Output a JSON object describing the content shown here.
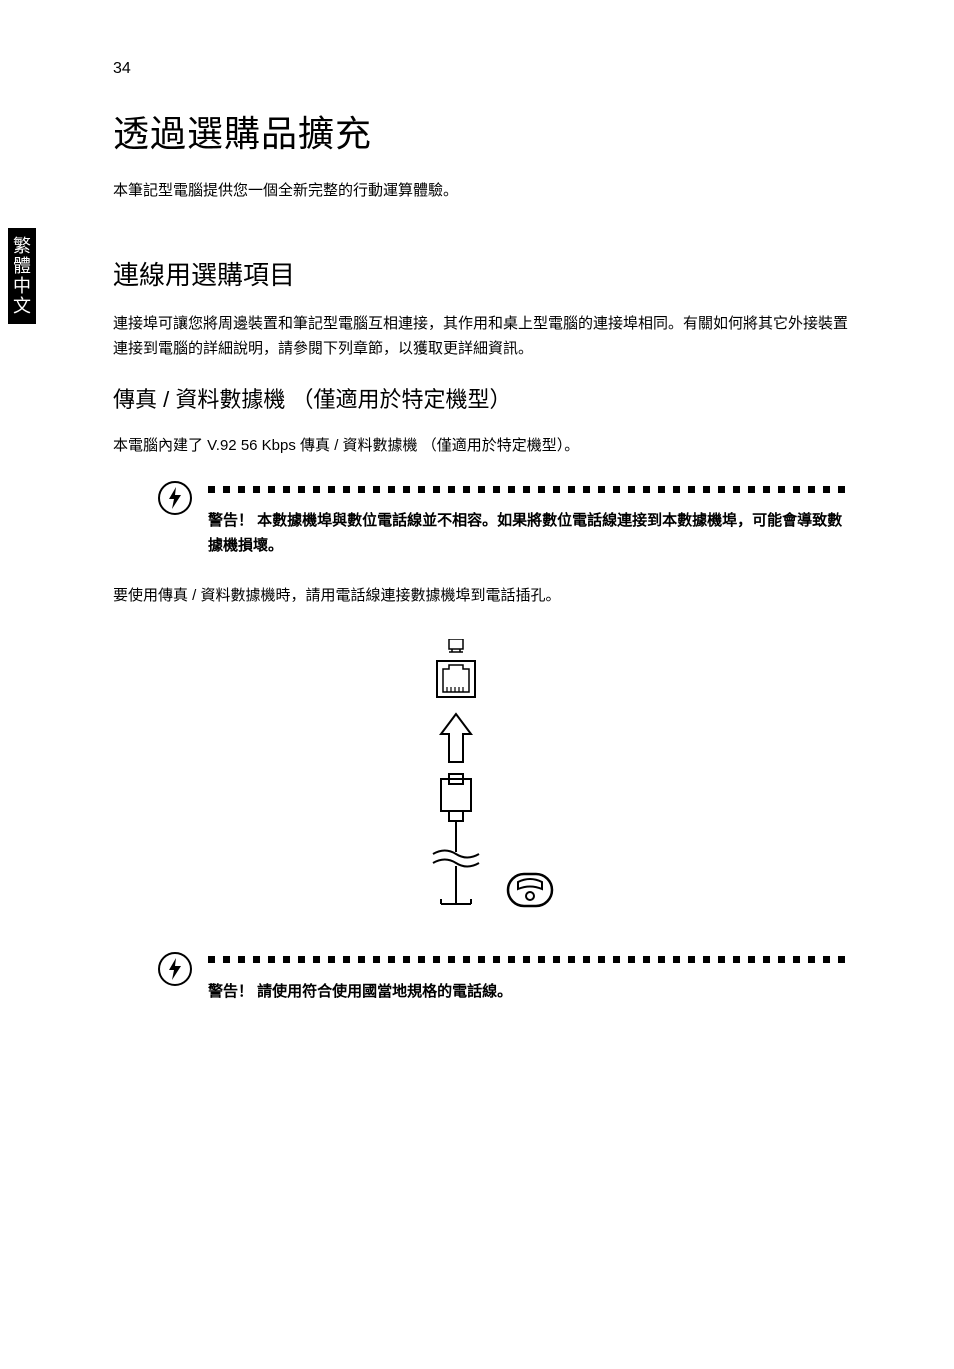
{
  "page_number": "34",
  "side_tab": "繁體中文",
  "main_heading": "透過選購品擴充",
  "intro": "本筆記型電腦提供您一個全新完整的行動運算體驗。",
  "sub_heading": "連線用選購項目",
  "connect_body": "連接埠可讓您將周邊裝置和筆記型電腦互相連接，其作用和桌上型電腦的連接埠相同。有關如何將其它外接裝置連接到電腦的詳細說明，請參閱下列章節，以獲取更詳細資訊。",
  "section_heading": "傳真 / 資料數據機 （僅適用於特定機型）",
  "modem_body": "本電腦內建了 V.92 56 Kbps 傳真 / 資料數據機 （僅適用於特定機型）。",
  "warning1": "警告！ 本數據機埠與數位電話線並不相容。如果將數位電話線連接到本數據機埠，可能會導致數據機損壞。",
  "usage_body": "要使用傳真 / 資料數據機時，請用電話線連接數據機埠到電話插孔。",
  "warning2": "警告！ 請使用符合使用國當地規格的電話線。",
  "colors": {
    "text": "#000000",
    "background": "#ffffff",
    "tab_bg": "#000000",
    "tab_text": "#ffffff"
  },
  "diagram": {
    "type": "connection-illustration",
    "elements": [
      "monitor-icon",
      "rj11-port",
      "up-arrow",
      "rj11-plug",
      "wavy-cable",
      "phone-icon"
    ]
  }
}
